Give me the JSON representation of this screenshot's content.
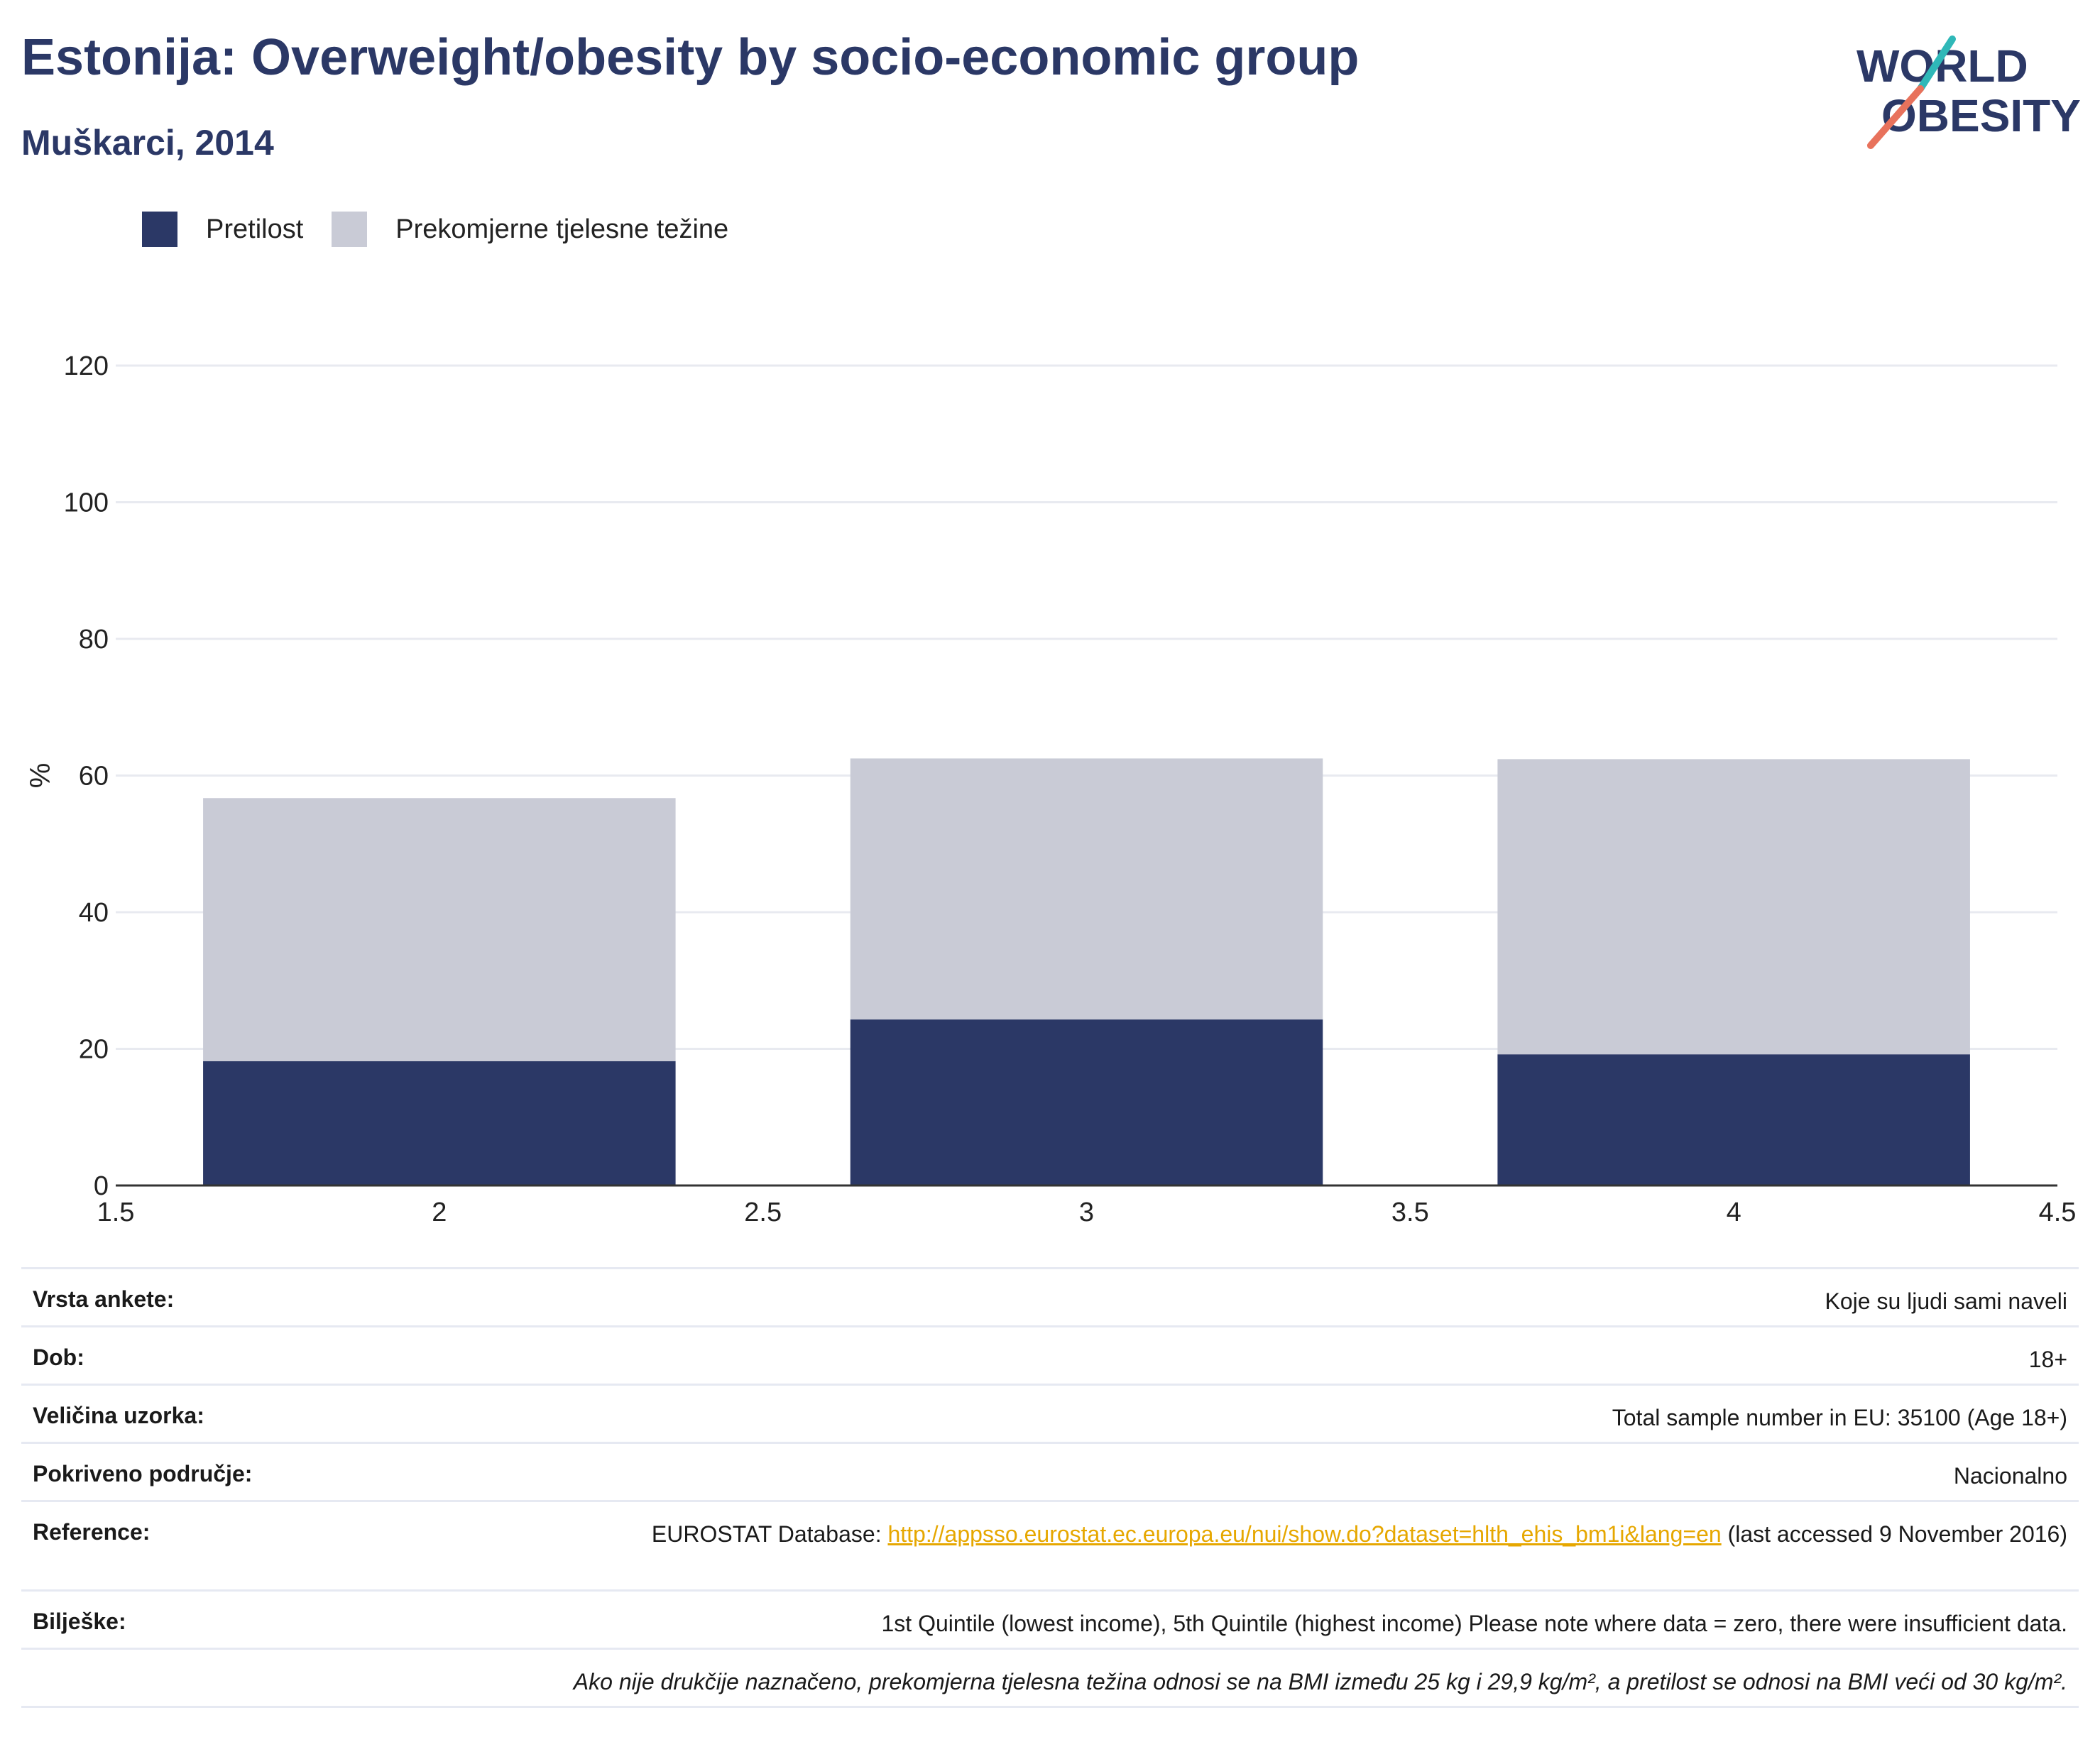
{
  "title": "Estonija: Overweight/obesity by socio-economic group",
  "subtitle": "Muškarci, 2014",
  "logo": {
    "line1": "WORLD",
    "line2": "OBESITY"
  },
  "colors": {
    "title": "#2b3866",
    "obesity": "#2b3866",
    "overweight": "#c9cbd6",
    "link": "#e6a700"
  },
  "legend": [
    {
      "label": "Pretilost",
      "color": "#2b3866"
    },
    {
      "label": "Prekomjerne tjelesne težine",
      "color": "#c9cbd6"
    }
  ],
  "chart_data": {
    "type": "bar",
    "stacked": true,
    "x": [
      2,
      3,
      4
    ],
    "xlim": [
      1.5,
      4.5
    ],
    "xticks": [
      "1.5",
      "2",
      "2.5",
      "3",
      "3.5",
      "4",
      "4.5"
    ],
    "ylabel": "%",
    "ylim": [
      0,
      120
    ],
    "yticks": [
      0,
      20,
      40,
      60,
      80,
      100,
      120
    ],
    "grid": true,
    "legend_position": "top-left",
    "series": [
      {
        "name": "Pretilost",
        "color": "#2b3866",
        "values": [
          18.2,
          24.3,
          19.2
        ]
      },
      {
        "name": "Prekomjerne tjelesne težine",
        "color": "#c9cbd6",
        "values": [
          38.5,
          38.2,
          43.2
        ]
      }
    ]
  },
  "meta": {
    "survey_type": {
      "label": "Vrsta ankete:",
      "value": "Koje su ljudi sami naveli"
    },
    "age": {
      "label": "Dob:",
      "value": "18+"
    },
    "sample": {
      "label": "Veličina uzorka:",
      "value": "Total sample number in EU: 35100 (Age 18+)"
    },
    "area": {
      "label": "Pokriveno područje:",
      "value": "Nacionalno"
    },
    "reference": {
      "label": "Reference:",
      "prefix": "EUROSTAT Database: ",
      "link": "http://appsso.eurostat.ec.europa.eu/nui/show.do?dataset=hlth_ehis_bm1i&lang=en",
      "suffix": " (last accessed 9 November 2016)"
    },
    "notes": {
      "label": "Bilješke:",
      "value": "1st Quintile (lowest income), 5th Quintile (highest income) Please note where data = zero, there were insufficient data."
    },
    "footnote": "Ako nije drukčije naznačeno, prekomjerna tjelesna težina odnosi se na BMI između 25 kg i 29,9 kg/m², a pretilost se odnosi na BMI veći od 30 kg/m²."
  }
}
